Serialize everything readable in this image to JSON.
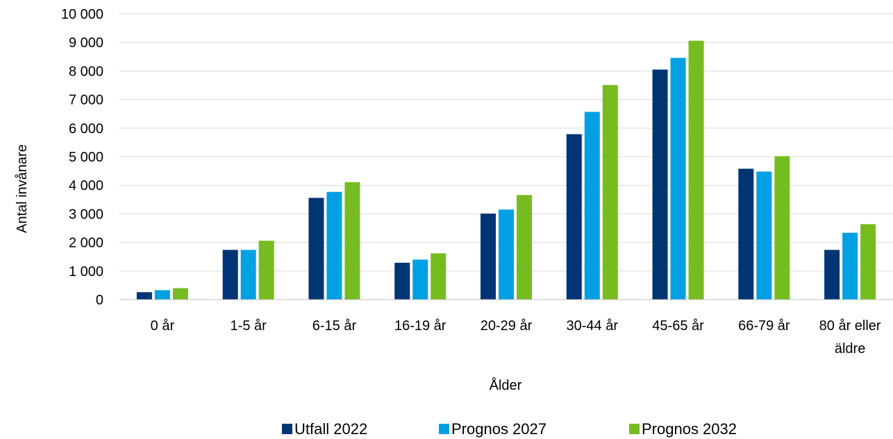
{
  "chart_data": {
    "type": "bar",
    "title": "",
    "xlabel": "Ålder",
    "ylabel": "Antal invånare",
    "ylim": [
      0,
      10000
    ],
    "yticks": [
      {
        "value": 0,
        "label": "0"
      },
      {
        "value": 1000,
        "label": "1 000"
      },
      {
        "value": 2000,
        "label": "2 000"
      },
      {
        "value": 3000,
        "label": "3 000"
      },
      {
        "value": 4000,
        "label": "4 000"
      },
      {
        "value": 5000,
        "label": "5 000"
      },
      {
        "value": 6000,
        "label": "6 000"
      },
      {
        "value": 7000,
        "label": "7 000"
      },
      {
        "value": 8000,
        "label": "8 000"
      },
      {
        "value": 9000,
        "label": "9 000"
      },
      {
        "value": 10000,
        "label": "10 000"
      }
    ],
    "categories": [
      "0 år",
      "1-5 år",
      "6-15 år",
      "16-19 år",
      "20-29 år",
      "30-44 år",
      "45-65 år",
      "66-79 år",
      "80 år eller äldre"
    ],
    "category_lines": [
      [
        "0 år"
      ],
      [
        "1-5 år"
      ],
      [
        "6-15 år"
      ],
      [
        "16-19 år"
      ],
      [
        "20-29 år"
      ],
      [
        "30-44 år"
      ],
      [
        "45-65 år"
      ],
      [
        "66-79 år"
      ],
      [
        "80 år eller",
        "äldre"
      ]
    ],
    "series": [
      {
        "name": "Utfall 2022",
        "color": "#003473",
        "values": [
          260,
          1740,
          3560,
          1290,
          3010,
          5790,
          8050,
          4580,
          1740
        ]
      },
      {
        "name": "Prognos 2027",
        "color": "#00a0e3",
        "values": [
          330,
          1740,
          3770,
          1400,
          3150,
          6570,
          8460,
          4480,
          2340
        ]
      },
      {
        "name": "Prognos 2032",
        "color": "#76bc21",
        "values": [
          400,
          2060,
          4110,
          1620,
          3660,
          7510,
          9060,
          5020,
          2640
        ]
      }
    ],
    "grid": true,
    "legend_position": "bottom"
  }
}
